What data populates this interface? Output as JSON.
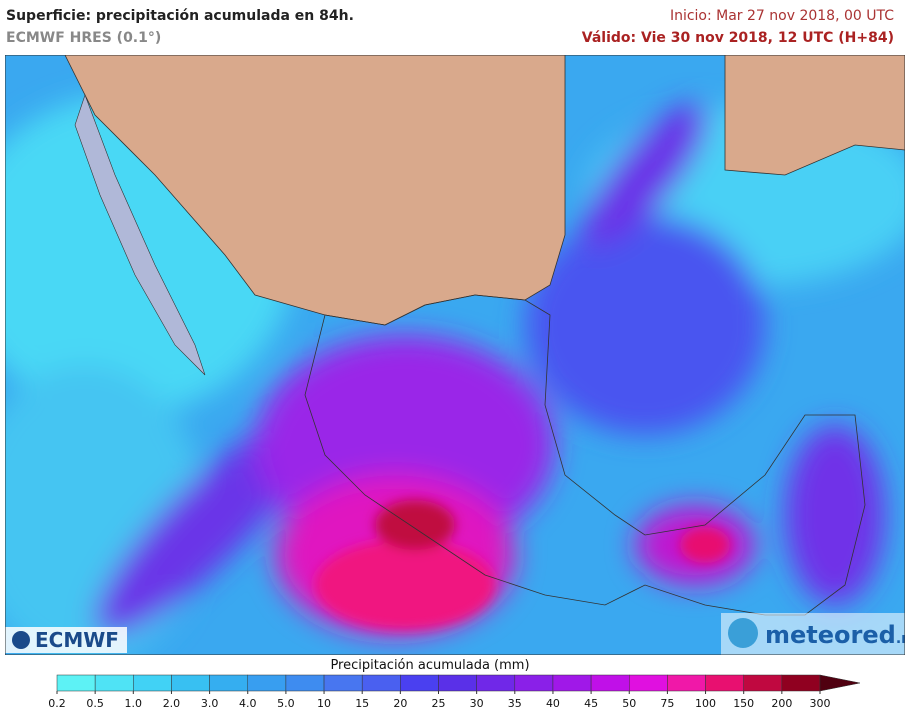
{
  "header": {
    "title": "Superficie: precipitación acumulada en 84h.",
    "model": "ECMWF HRES (0.1°)",
    "init": "Inicio: Mar 27 nov 2018, 00 UTC",
    "valid": "Válido: Vie 30 nov 2018, 12 UTC (H+84)"
  },
  "logos": {
    "left": "ECMWF",
    "right": "meteored",
    "right_suffix": ".mx"
  },
  "colorbar": {
    "title": "Precipitación acumulada (mm)",
    "ticks": [
      0.2,
      0.5,
      {
        "value": 1,
        "label": "1.0"
      },
      {
        "value": 2,
        "label": "2.0"
      },
      {
        "value": 3,
        "label": "3.0"
      },
      {
        "value": 4,
        "label": "4.0"
      },
      {
        "value": 5,
        "label": "5.0"
      },
      10,
      15,
      20,
      25,
      30,
      35,
      40,
      45,
      50,
      75,
      100,
      150,
      200,
      300
    ],
    "colors": [
      "#5df2f5",
      "#4fe3f5",
      "#41d2f5",
      "#38c0f2",
      "#35aef0",
      "#389ef0",
      "#3e8cf0",
      "#4876f0",
      "#4a60f0",
      "#4a40f0",
      "#5a30e8",
      "#7028e8",
      "#8a20e8",
      "#a018e8",
      "#c010e8",
      "#e010e0",
      "#f018a8",
      "#e81070",
      "#c00840",
      "#900020",
      "#500010"
    ]
  }
}
